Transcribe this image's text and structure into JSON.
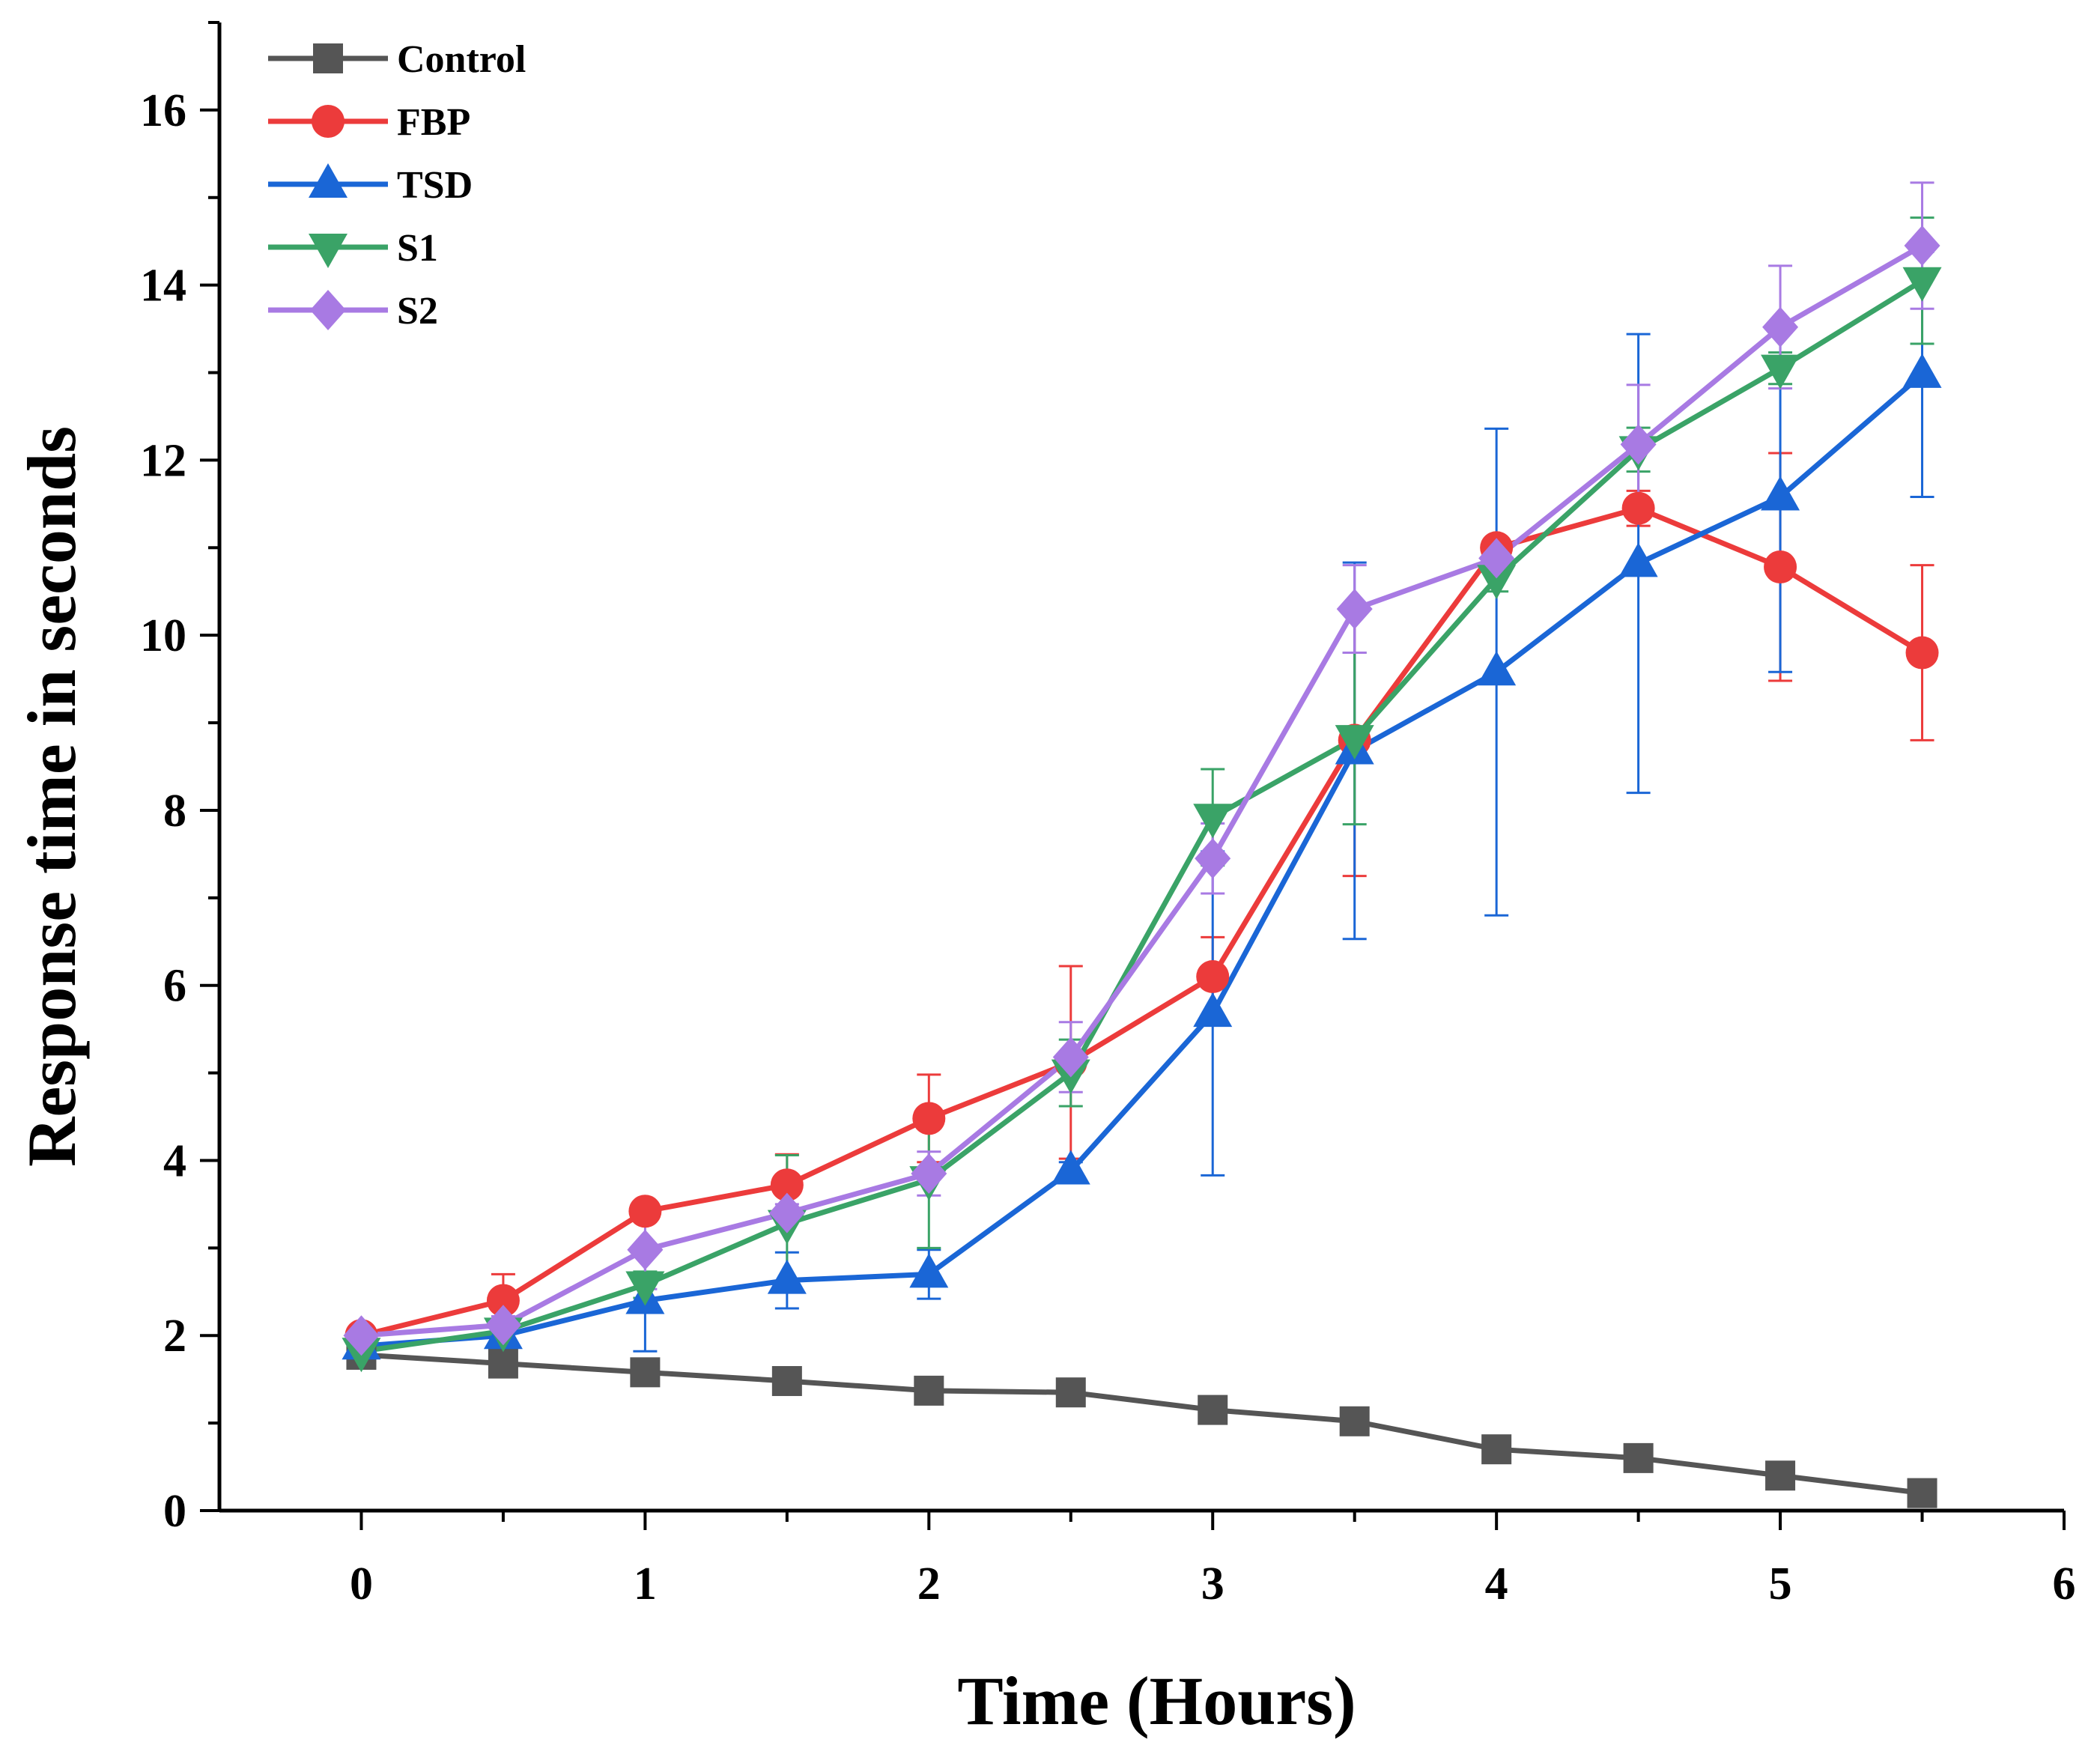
{
  "chart_data": {
    "type": "line",
    "title": "",
    "xlabel": "Time (Hours)",
    "ylabel": "Response time in seconds",
    "xlim": [
      -0.5,
      6
    ],
    "ylim": [
      0,
      17
    ],
    "x_ticks": [
      "0",
      "1",
      "2",
      "3",
      "4",
      "5",
      "6"
    ],
    "y_ticks": [
      "0",
      "2",
      "4",
      "6",
      "8",
      "10",
      "12",
      "14",
      "16"
    ],
    "x": [
      0,
      0.5,
      1,
      1.5,
      2,
      2.5,
      3,
      3.5,
      4,
      4.5,
      5,
      5.5
    ],
    "legend_position": "top-left",
    "series": [
      {
        "name": "Control",
        "color": "#555555",
        "marker": "square",
        "values": [
          1.78,
          1.68,
          1.58,
          1.48,
          1.37,
          1.35,
          1.15,
          1.02,
          0.7,
          0.6,
          0.4,
          0.2
        ],
        "errors": [
          0,
          0,
          0,
          0,
          0,
          0,
          0,
          0,
          0,
          0,
          0,
          0
        ]
      },
      {
        "name": "FBP",
        "color": "#ec3b3b",
        "marker": "circle",
        "values": [
          2.0,
          2.4,
          3.42,
          3.72,
          4.48,
          5.12,
          6.1,
          8.8,
          11.0,
          11.45,
          10.78,
          9.8
        ],
        "errors": [
          0.05,
          0.3,
          0.1,
          0.35,
          0.5,
          1.1,
          0.45,
          1.55,
          0.1,
          0.2,
          1.3,
          1.0
        ]
      },
      {
        "name": "TSD",
        "color": "#1a66d6",
        "marker": "triangle-up",
        "values": [
          1.88,
          2.0,
          2.4,
          2.63,
          2.7,
          3.88,
          5.68,
          8.68,
          9.58,
          10.82,
          11.58,
          12.98
        ],
        "errors": [
          0.05,
          0.1,
          0.58,
          0.32,
          0.28,
          0.1,
          1.85,
          2.15,
          2.78,
          2.62,
          2.0,
          1.4
        ]
      },
      {
        "name": "S1",
        "color": "#3aa367",
        "marker": "triangle-down",
        "values": [
          1.82,
          2.05,
          2.58,
          3.28,
          3.78,
          5.0,
          7.92,
          8.82,
          10.65,
          12.12,
          13.05,
          14.05
        ],
        "errors": [
          0.05,
          0.1,
          0.15,
          0.78,
          0.78,
          0.38,
          0.55,
          0.98,
          0.15,
          0.25,
          0.18,
          0.72
        ]
      },
      {
        "name": "S2",
        "color": "#a87ae3",
        "marker": "diamond",
        "values": [
          2.0,
          2.12,
          2.98,
          3.4,
          3.85,
          5.18,
          7.45,
          10.3,
          10.88,
          12.18,
          13.52,
          14.45
        ],
        "errors": [
          0.05,
          0.1,
          0.45,
          0.1,
          0.25,
          0.4,
          0.4,
          0.5,
          0.1,
          0.68,
          0.7,
          0.72
        ]
      }
    ]
  }
}
